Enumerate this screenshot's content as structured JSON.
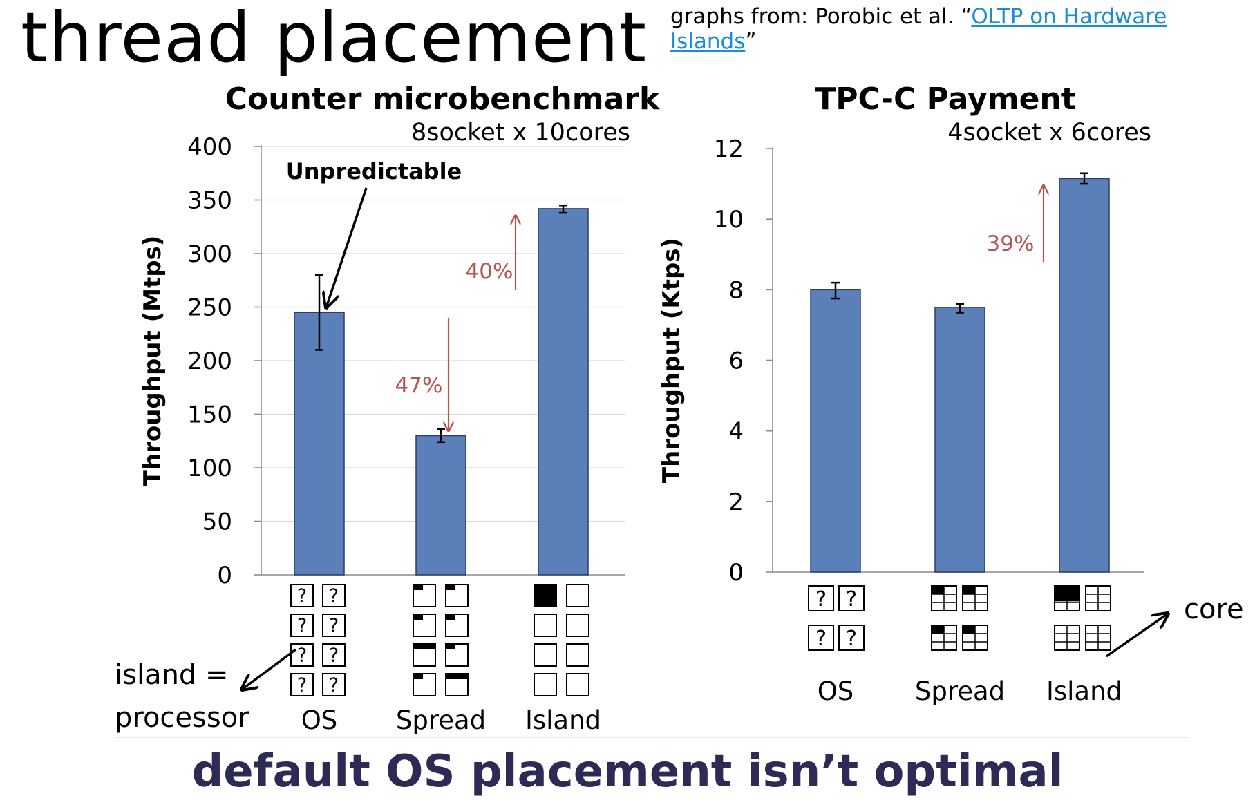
{
  "slide": {
    "title": "thread placement",
    "credit_prefix": "graphs from: Porobic et al. “",
    "credit_link": "OLTP on Hardware Islands",
    "credit_suffix": "”",
    "bottom_message": "default OS placement isn’t optimal",
    "annotations": {
      "island_label_line1": "island =",
      "island_label_line2": "processor",
      "core_label": "core",
      "unpredictable": "Unpredictable"
    }
  },
  "colors": {
    "bar": "#5b7fb9",
    "bar_edge": "#2e3f63",
    "arrow": "#b85450",
    "annotation_arrow": "#000000",
    "grid": "#d9d9d9",
    "bottom_message": "#2e2a56"
  },
  "chart_data": [
    {
      "type": "bar",
      "title": "Counter microbenchmark",
      "subtitle": "8socket x 10cores",
      "ylabel": "Throughput (Mtps)",
      "xlabel": "",
      "categories": [
        "OS",
        "Spread",
        "Island"
      ],
      "values": [
        245,
        130,
        342
      ],
      "error": [
        [
          210,
          280
        ],
        [
          124,
          136
        ],
        [
          338,
          345
        ]
      ],
      "ylim": [
        0,
        400
      ],
      "yticks": [
        0,
        50,
        100,
        150,
        200,
        250,
        300,
        350,
        400
      ],
      "grid": true,
      "annotations": [
        {
          "text": "47%",
          "kind": "decrease",
          "from": 240,
          "to": 130
        },
        {
          "text": "40%",
          "kind": "increase",
          "from": 240,
          "to": 342
        },
        {
          "text": "Unpredictable",
          "target": "OS"
        }
      ],
      "placement_glyphs": {
        "layout": "8 sockets, 2 columns x 4 rows",
        "OS": "unknown (?) on every socket",
        "Spread": "threads spread across all sockets",
        "Island": "all threads on one socket"
      }
    },
    {
      "type": "bar",
      "title": "TPC-C Payment",
      "subtitle": "4socket x 6cores",
      "ylabel": "Throughput (Ktps)",
      "xlabel": "",
      "categories": [
        "OS",
        "Spread",
        "Island"
      ],
      "values": [
        8.0,
        7.5,
        11.15
      ],
      "error": [
        [
          7.75,
          8.2
        ],
        [
          7.35,
          7.6
        ],
        [
          11.0,
          11.3
        ]
      ],
      "ylim": [
        0,
        12
      ],
      "yticks": [
        0,
        2,
        4,
        6,
        8,
        10,
        12
      ],
      "grid": false,
      "annotations": [
        {
          "text": "39%",
          "kind": "increase",
          "from": 8.0,
          "to": 11.15
        }
      ],
      "placement_glyphs": {
        "layout": "4 sockets, 2 columns x 2 rows, 6 cores each",
        "OS": "unknown (?) on every socket",
        "Spread": "threads spread across all sockets",
        "Island": "all threads on one socket"
      }
    }
  ]
}
